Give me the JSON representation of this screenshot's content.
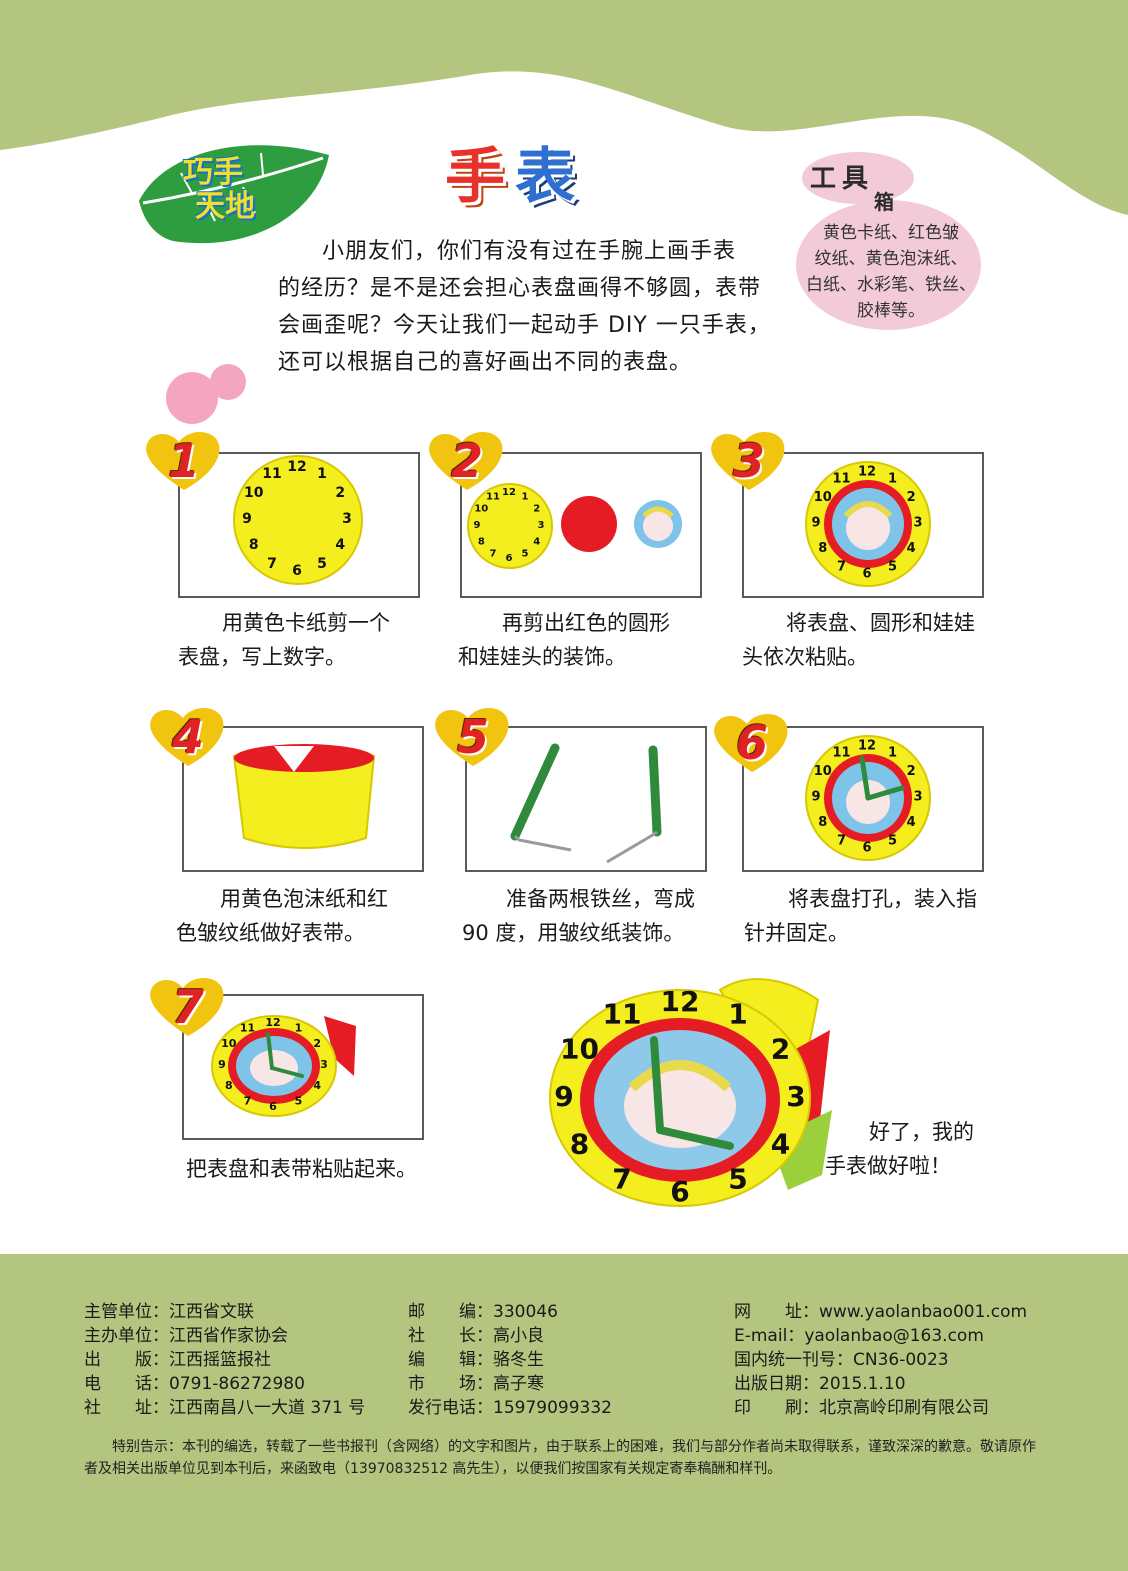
{
  "header": {
    "column_name": [
      "巧手",
      "天地"
    ],
    "title": [
      "手",
      "表"
    ],
    "intro": [
      "小朋友们，你们有没有过在手腕上画手表",
      "的经历？是不是还会担心表盘画得不够圆，表带",
      "会画歪呢？今天让我们一起动手 DIY 一只手表，",
      "还可以根据自己的喜好画出不同的表盘。"
    ]
  },
  "toolbox": {
    "title_big": "工具",
    "title_small": "箱",
    "items": [
      "黄色卡纸、红色皱",
      "纹纸、黄色泡沫纸、",
      "白纸、水彩笔、铁丝、",
      "胶棒等。"
    ]
  },
  "steps": [
    {
      "number": "1",
      "lines": [
        "用黄色卡纸剪一个",
        "表盘，写上数字。"
      ]
    },
    {
      "number": "2",
      "lines": [
        "再剪出红色的圆形",
        "和娃娃头的装饰。"
      ]
    },
    {
      "number": "3",
      "lines": [
        "将表盘、圆形和娃娃",
        "头依次粘贴。"
      ]
    },
    {
      "number": "4",
      "lines": [
        "用黄色泡沫纸和红",
        "色皱纹纸做好表带。"
      ]
    },
    {
      "number": "5",
      "lines": [
        "准备两根铁丝，弯成",
        "90 度，用皱纹纸装饰。"
      ]
    },
    {
      "number": "6",
      "lines": [
        "将表盘打孔，装入指",
        "针并固定。"
      ]
    },
    {
      "number": "7",
      "lines": [
        "把表盘和表带粘贴起来。"
      ]
    }
  ],
  "clock_numbers": [
    "12",
    "1",
    "2",
    "3",
    "4",
    "5",
    "6",
    "7",
    "8",
    "9",
    "10",
    "11"
  ],
  "finish_text": [
    "好了，我的",
    "手表做好啦！"
  ],
  "colors": {
    "green": "#b3c57f",
    "yellow": "#f4ee1f",
    "red": "#e51c23",
    "heart": "#f1c40f",
    "pink": "#f3cbd8"
  },
  "footer": {
    "col1": [
      {
        "label": "主管单位：",
        "value": "江西省文联"
      },
      {
        "label": "主办单位：",
        "value": "江西省作家协会"
      },
      {
        "label": "出　　版：",
        "value": "江西摇篮报社"
      },
      {
        "label": "电　　话：",
        "value": "0791-86272980"
      },
      {
        "label": "社　　址：",
        "value": "江西南昌八一大道 371 号"
      }
    ],
    "col2": [
      {
        "label": "邮　　编：",
        "value": "330046"
      },
      {
        "label": "社　　长：",
        "value": "高小良"
      },
      {
        "label": "编　　辑：",
        "value": "骆冬生"
      },
      {
        "label": "市　　场：",
        "value": "高子寒"
      },
      {
        "label": "发行电话：",
        "value": "15979099332"
      }
    ],
    "col3": [
      {
        "label": "网　　址：",
        "value": "www.yaolanbao001.com"
      },
      {
        "label": "E-mail：",
        "value": "yaolanbao@163.com"
      },
      {
        "label": "国内统一刊号：",
        "value": "CN36-0023"
      },
      {
        "label": "出版日期：",
        "value": "2015.1.10"
      },
      {
        "label": "印　　刷：",
        "value": "北京高岭印刷有限公司"
      }
    ],
    "notice": "特别告示：本刊的编选，转载了一些书报刊（含网络）的文字和图片，由于联系上的困难，我们与部分作者尚未取得联系，谨致深深的歉意。敬请原作者及相关出版单位见到本刊后，来函致电（13970832512 高先生），以便我们按国家有关规定寄奉稿酬和样刊。"
  }
}
